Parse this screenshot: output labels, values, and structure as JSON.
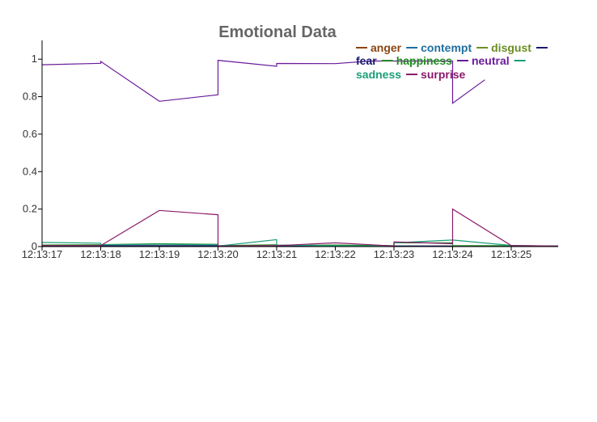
{
  "chart_data": {
    "type": "line",
    "title": "Emotional Data",
    "xlabel": "",
    "ylabel": "",
    "x_tick_labels": [
      "12:13:17",
      "12:13:18",
      "12:13:19",
      "12:13:20",
      "12:13:21",
      "12:13:22",
      "12:13:23",
      "12:13:24",
      "12:13:25"
    ],
    "x_range_seconds": [
      0,
      8.8
    ],
    "ylim": [
      0,
      1.1
    ],
    "y_ticks": [
      0,
      0.2,
      0.4,
      0.6,
      0.8,
      1
    ],
    "y_tick_labels": [
      "0",
      "0.2",
      "0.4",
      "0.6",
      "0.8",
      "1"
    ],
    "grid": false,
    "legend_position": "top-right",
    "series": [
      {
        "name": "anger",
        "color": "#8b4513",
        "x": [
          0,
          1,
          2,
          3,
          3,
          4,
          4,
          5,
          6,
          6,
          7,
          7,
          8,
          8.8
        ],
        "y": [
          0.005,
          0.005,
          0.005,
          0.005,
          0.003,
          0.003,
          0.003,
          0.003,
          0.003,
          0.003,
          0.003,
          0.003,
          0.003,
          0.003
        ]
      },
      {
        "name": "contempt",
        "color": "#1f6fa0",
        "x": [
          0,
          1,
          2,
          3,
          3,
          4,
          4,
          5,
          6,
          6,
          7,
          7,
          8,
          8.8
        ],
        "y": [
          0.005,
          0.005,
          0.005,
          0.005,
          0.003,
          0.003,
          0.003,
          0.003,
          0.003,
          0.003,
          0.003,
          0.003,
          0.003,
          0.003
        ]
      },
      {
        "name": "disgust",
        "color": "#6b8e23",
        "x": [
          0,
          1,
          2,
          3,
          3,
          4,
          4,
          5,
          6,
          6,
          7,
          7,
          8,
          8.8
        ],
        "y": [
          0.004,
          0.004,
          0.004,
          0.004,
          0.003,
          0.003,
          0.003,
          0.003,
          0.003,
          0.003,
          0.003,
          0.003,
          0.003,
          0.003
        ]
      },
      {
        "name": "fear",
        "color": "#191970",
        "x": [
          0,
          1,
          2,
          3,
          3,
          4,
          4,
          5,
          6,
          6,
          7,
          7,
          8,
          8.8
        ],
        "y": [
          0.004,
          0.004,
          0.004,
          0.004,
          0.003,
          0.003,
          0.003,
          0.003,
          0.003,
          0.003,
          0.003,
          0.003,
          0.003,
          0.003
        ]
      },
      {
        "name": "happiness",
        "color": "#228b22",
        "x": [
          0,
          1,
          2,
          3,
          3,
          4,
          4,
          5,
          6,
          6,
          7,
          7,
          8,
          8.8
        ],
        "y": [
          0.008,
          0.01,
          0.015,
          0.012,
          0.005,
          0.01,
          0.006,
          0.008,
          0.005,
          0.02,
          0.02,
          0.005,
          0.005,
          0.003
        ]
      },
      {
        "name": "neutral",
        "color": "#6a1b9a",
        "x": [
          0,
          1,
          1,
          2,
          3,
          3,
          4,
          4,
          5,
          5.6,
          6,
          7,
          7,
          7.55
        ],
        "y": [
          0.97,
          0.978,
          0.988,
          0.775,
          0.81,
          0.994,
          0.962,
          0.977,
          0.976,
          0.99,
          0.99,
          0.99,
          0.765,
          0.89
        ]
      },
      {
        "name": "sadness",
        "color": "#1a9e77",
        "x": [
          0,
          1,
          1,
          2,
          3,
          3,
          4,
          4,
          5,
          6,
          6,
          7,
          8,
          8.8
        ],
        "y": [
          0.022,
          0.018,
          0.01,
          0.012,
          0.01,
          0.003,
          0.037,
          0.008,
          0.004,
          0.003,
          0.02,
          0.035,
          0.006,
          0.003
        ]
      },
      {
        "name": "surprise",
        "color": "#8b1a6b",
        "x": [
          0,
          1,
          2,
          3,
          3,
          4,
          5,
          6,
          6,
          7,
          7,
          8,
          8.8
        ],
        "y": [
          0.005,
          0.005,
          0.193,
          0.17,
          0.003,
          0.005,
          0.02,
          0.003,
          0.025,
          0.015,
          0.2,
          0.005,
          0.003
        ]
      }
    ]
  }
}
